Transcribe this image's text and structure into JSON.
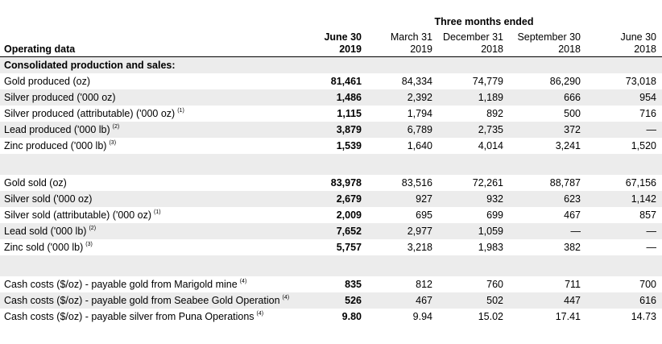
{
  "caption": "Three months ended",
  "header": {
    "label": "Operating data",
    "columns": [
      {
        "line1": "June 30",
        "line2": "2019"
      },
      {
        "line1": "March 31",
        "line2": "2019"
      },
      {
        "line1": "December 31",
        "line2": "2018"
      },
      {
        "line1": "September 30",
        "line2": "2018"
      },
      {
        "line1": "June 30",
        "line2": "2018"
      }
    ]
  },
  "section_title": "Consolidated production and sales:",
  "production": [
    {
      "label": "Gold produced (oz)",
      "note": "",
      "values": [
        "81,461",
        "84,334",
        "74,779",
        "86,290",
        "73,018"
      ]
    },
    {
      "label": "Silver produced ('000 oz)",
      "note": "",
      "values": [
        "1,486",
        "2,392",
        "1,189",
        "666",
        "954"
      ]
    },
    {
      "label": "Silver produced (attributable) ('000 oz)",
      "note": "(1)",
      "values": [
        "1,115",
        "1,794",
        "892",
        "500",
        "716"
      ]
    },
    {
      "label": "Lead produced ('000 lb)",
      "note": "(2)",
      "values": [
        "3,879",
        "6,789",
        "2,735",
        "372",
        "—"
      ]
    },
    {
      "label": "Zinc produced ('000 lb)",
      "note": "(3)",
      "values": [
        "1,539",
        "1,640",
        "4,014",
        "3,241",
        "1,520"
      ]
    }
  ],
  "sales": [
    {
      "label": "Gold sold (oz)",
      "note": "",
      "values": [
        "83,978",
        "83,516",
        "72,261",
        "88,787",
        "67,156"
      ]
    },
    {
      "label": "Silver sold ('000 oz)",
      "note": "",
      "values": [
        "2,679",
        "927",
        "932",
        "623",
        "1,142"
      ]
    },
    {
      "label": "Silver sold (attributable) ('000 oz)",
      "note": "(1)",
      "values": [
        "2,009",
        "695",
        "699",
        "467",
        "857"
      ]
    },
    {
      "label": "Lead sold ('000 lb)",
      "note": "(2)",
      "values": [
        "7,652",
        "2,977",
        "1,059",
        "—",
        "—"
      ]
    },
    {
      "label": "Zinc sold ('000 lb)",
      "note": "(3)",
      "values": [
        "5,757",
        "3,218",
        "1,983",
        "382",
        "—"
      ]
    }
  ],
  "costs": [
    {
      "label": "Cash costs ($/oz) - payable gold from Marigold mine",
      "note": "(4)",
      "values": [
        "835",
        "812",
        "760",
        "711",
        "700"
      ]
    },
    {
      "label": "Cash costs ($/oz) - payable gold from Seabee Gold Operation",
      "note": "(4)",
      "values": [
        "526",
        "467",
        "502",
        "447",
        "616"
      ]
    },
    {
      "label": "Cash costs ($/oz) - payable silver from Puna Operations",
      "note": "(4)",
      "values": [
        "9.80",
        "9.94",
        "15.02",
        "17.41",
        "14.73"
      ]
    }
  ]
}
